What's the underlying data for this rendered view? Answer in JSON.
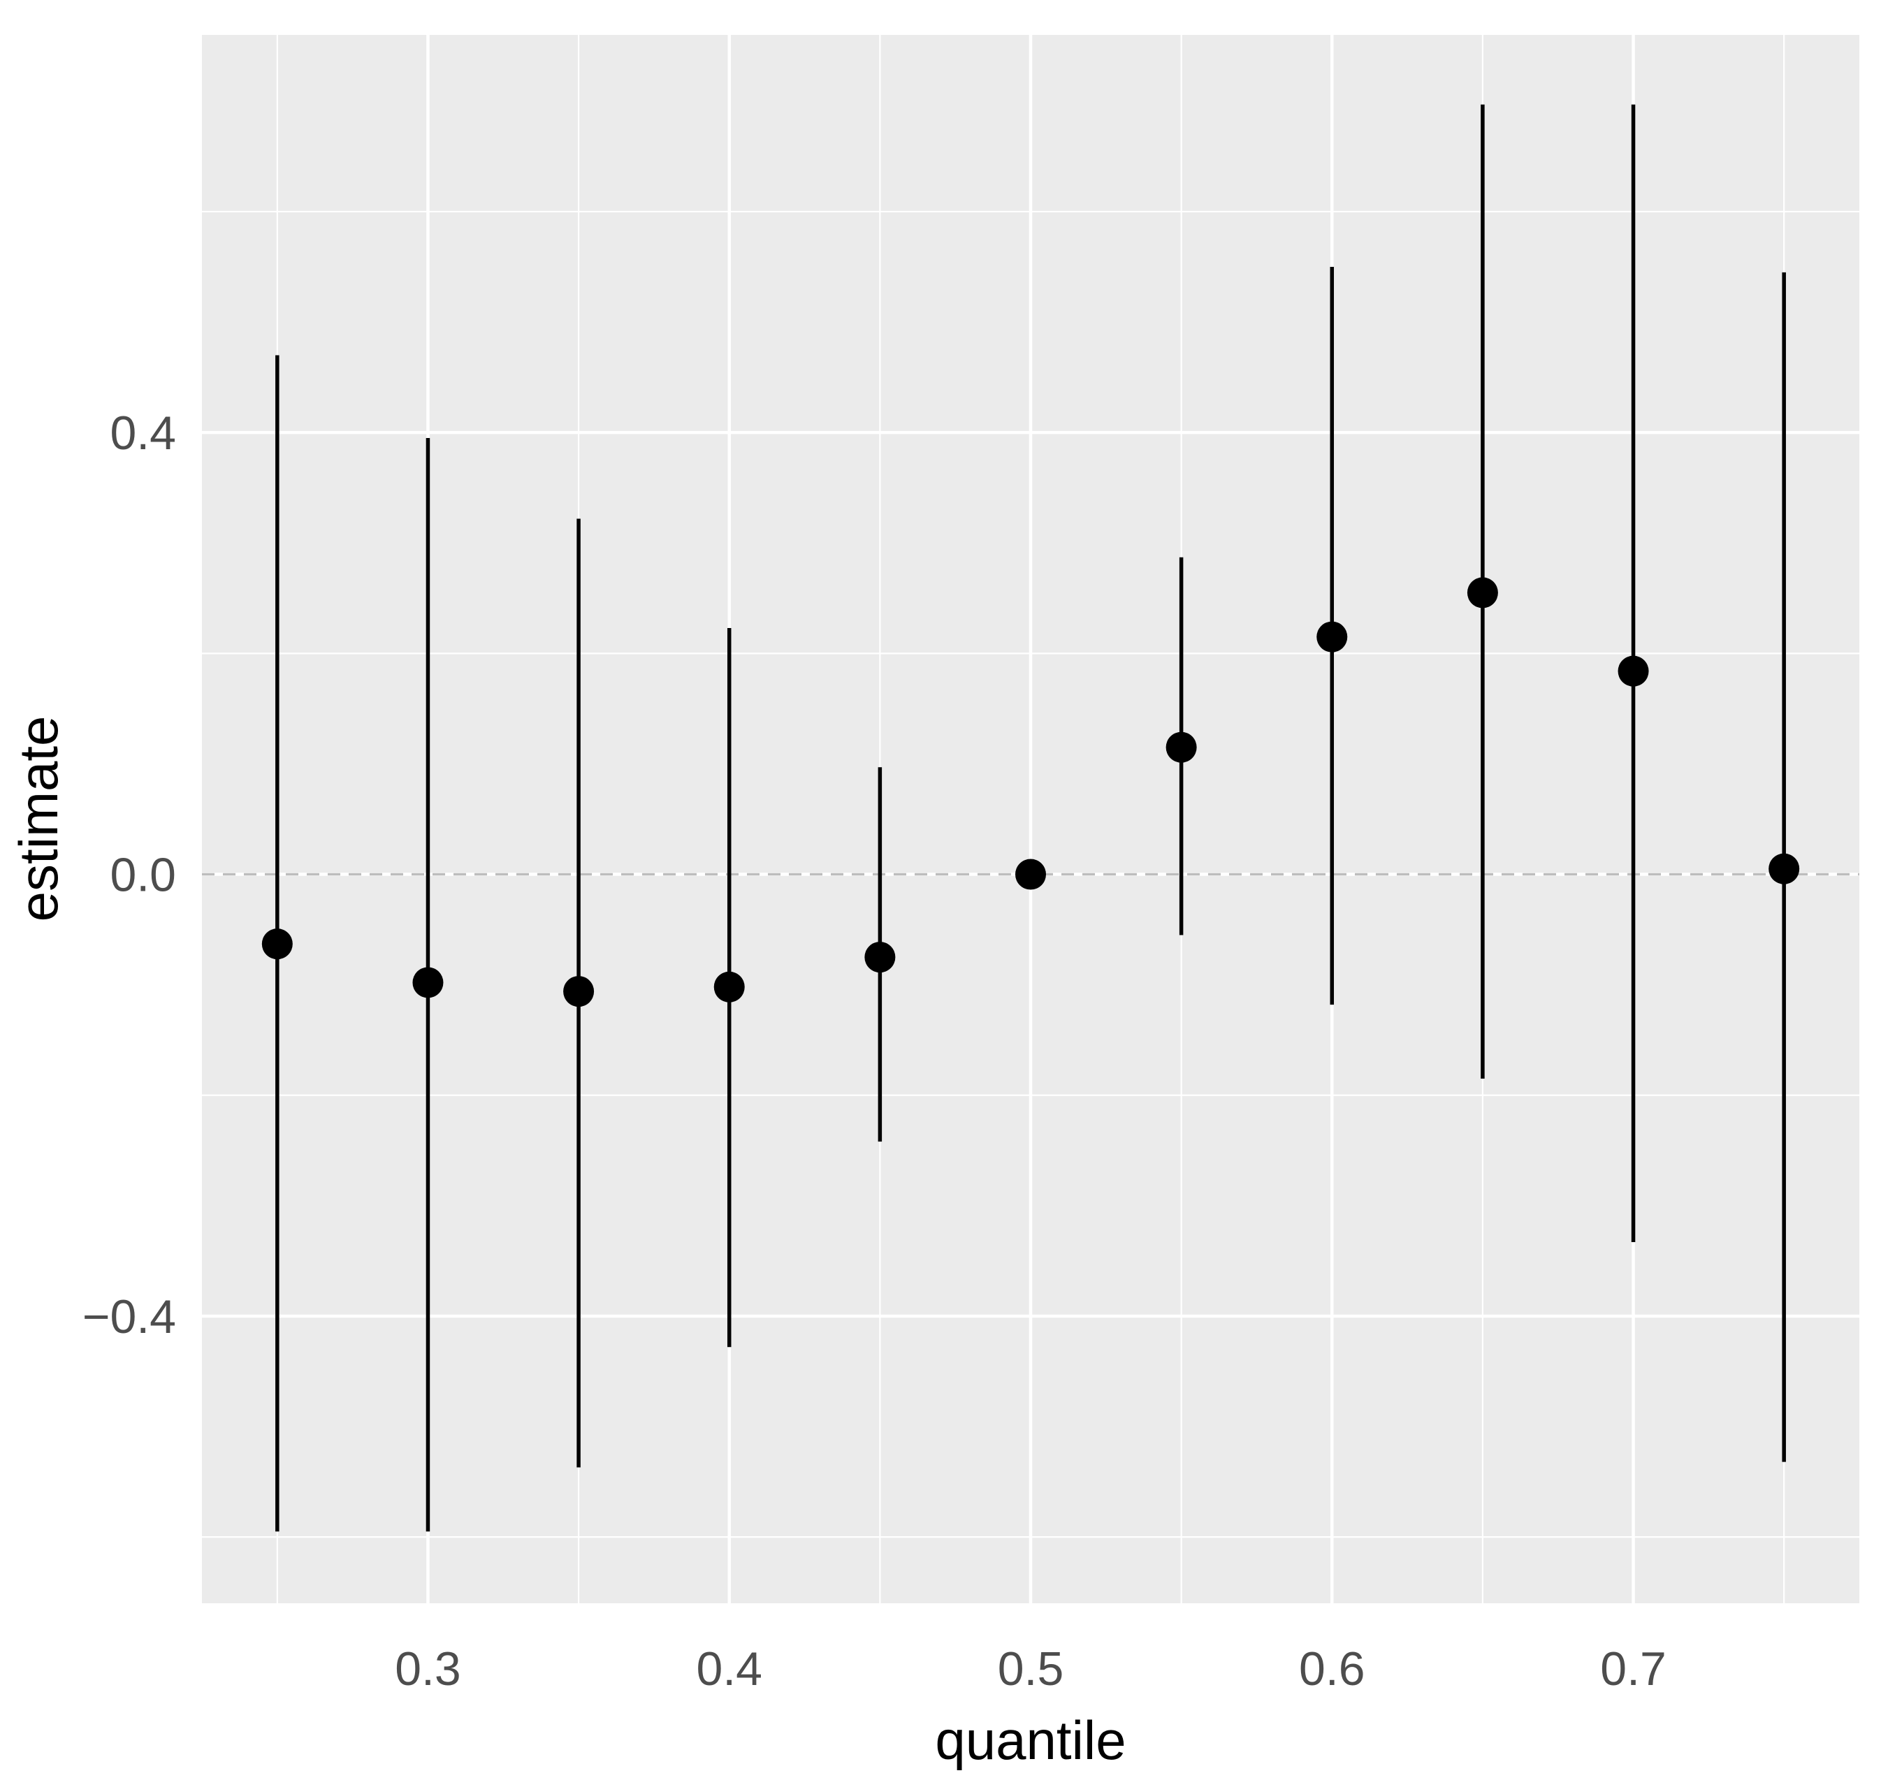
{
  "chart_data": {
    "type": "scatter",
    "subtype": "pointrange",
    "title": "",
    "xlabel": "quantile",
    "ylabel": "estimate",
    "xlim": [
      0.225,
      0.775
    ],
    "ylim": [
      -0.66,
      0.76
    ],
    "x_ticks": [
      0.3,
      0.4,
      0.5,
      0.6,
      0.7
    ],
    "x_tick_labels": [
      "0.3",
      "0.4",
      "0.5",
      "0.6",
      "0.7"
    ],
    "x_minor_ticks": [
      0.25,
      0.35,
      0.45,
      0.55,
      0.65,
      0.75
    ],
    "y_ticks": [
      -0.4,
      0.0,
      0.4
    ],
    "y_tick_labels": [
      "−0.4",
      "0.0",
      "0.4"
    ],
    "y_minor_ticks": [
      -0.6,
      -0.2,
      0.2,
      0.6
    ],
    "reference_line": {
      "y": 0,
      "style": "dashed",
      "color": "#BDBDBD"
    },
    "grid": true,
    "legend": "none",
    "colors": {
      "panel": "#EBEBEB",
      "grid": "#FFFFFF",
      "marks": "#000000",
      "tick_text": "#4D4D4D",
      "title_text": "#000000"
    },
    "points": [
      {
        "x": 0.25,
        "y": -0.063,
        "ymin": -0.595,
        "ymax": 0.47
      },
      {
        "x": 0.3,
        "y": -0.098,
        "ymin": -0.595,
        "ymax": 0.395
      },
      {
        "x": 0.35,
        "y": -0.106,
        "ymin": -0.537,
        "ymax": 0.322
      },
      {
        "x": 0.4,
        "y": -0.102,
        "ymin": -0.428,
        "ymax": 0.223
      },
      {
        "x": 0.45,
        "y": -0.075,
        "ymin": -0.242,
        "ymax": 0.097
      },
      {
        "x": 0.5,
        "y": 0.0,
        "ymin": 0.0,
        "ymax": 0.0
      },
      {
        "x": 0.55,
        "y": 0.115,
        "ymin": -0.055,
        "ymax": 0.287
      },
      {
        "x": 0.6,
        "y": 0.215,
        "ymin": -0.118,
        "ymax": 0.55
      },
      {
        "x": 0.65,
        "y": 0.255,
        "ymin": -0.185,
        "ymax": 0.697
      },
      {
        "x": 0.7,
        "y": 0.184,
        "ymin": -0.333,
        "ymax": 0.697
      },
      {
        "x": 0.75,
        "y": 0.005,
        "ymin": -0.532,
        "ymax": 0.545
      }
    ]
  }
}
